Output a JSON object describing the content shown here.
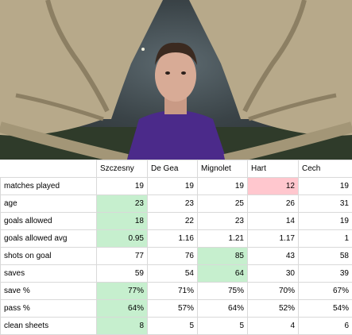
{
  "photo": {
    "description_icon": "goalkeeper-photo",
    "colors": {
      "glove": "#b7a98a",
      "shirt": "#4b2a8a",
      "sky": "#5d6a70"
    }
  },
  "table": {
    "columns": [
      "Szczesny",
      "De Gea",
      "Mignolet",
      "Hart",
      "Cech"
    ],
    "rows": [
      {
        "label": "matches played",
        "values": [
          "19",
          "19",
          "19",
          "12",
          "19"
        ],
        "highlight": {
          "3": "red"
        }
      },
      {
        "label": "age",
        "values": [
          "23",
          "23",
          "25",
          "26",
          "31"
        ],
        "highlight": {
          "0": "green"
        }
      },
      {
        "label": "goals allowed",
        "values": [
          "18",
          "22",
          "23",
          "14",
          "19"
        ],
        "highlight": {
          "0": "green"
        }
      },
      {
        "label": "goals allowed avg",
        "values": [
          "0.95",
          "1.16",
          "1.21",
          "1.17",
          "1"
        ],
        "highlight": {
          "0": "green"
        }
      },
      {
        "label": "shots on goal",
        "values": [
          "77",
          "76",
          "85",
          "43",
          "58"
        ],
        "highlight": {
          "2": "green"
        }
      },
      {
        "label": "saves",
        "values": [
          "59",
          "54",
          "64",
          "30",
          "39"
        ],
        "highlight": {
          "2": "green"
        }
      },
      {
        "label": "save %",
        "values": [
          "77%",
          "71%",
          "75%",
          "70%",
          "67%"
        ],
        "highlight": {
          "0": "green"
        }
      },
      {
        "label": "pass %",
        "values": [
          "64%",
          "57%",
          "64%",
          "52%",
          "54%"
        ],
        "highlight": {
          "0": "green"
        }
      },
      {
        "label": "clean sheets",
        "values": [
          "8",
          "5",
          "5",
          "4",
          "6"
        ],
        "highlight": {
          "0": "green"
        }
      }
    ],
    "colors": {
      "green": "#c6efce",
      "red": "#ffc7ce"
    }
  }
}
